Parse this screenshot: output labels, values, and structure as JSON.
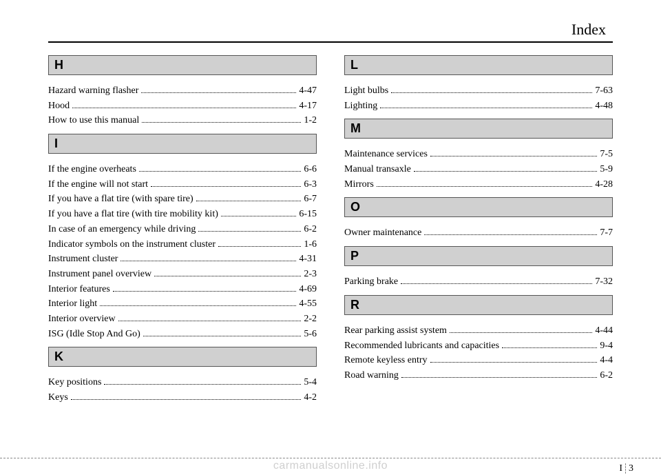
{
  "header": {
    "title": "Index"
  },
  "left": {
    "sections": [
      {
        "letter": "H",
        "entries": [
          {
            "label": "Hazard warning flasher",
            "page": "4-47"
          },
          {
            "label": "Hood",
            "page": "4-17"
          },
          {
            "label": "How to use this manual",
            "page": "1-2"
          }
        ]
      },
      {
        "letter": "I",
        "entries": [
          {
            "label": "If the engine overheats",
            "page": "6-6"
          },
          {
            "label": "If the engine will not start",
            "page": "6-3"
          },
          {
            "label": "If you have a flat tire (with spare tire)",
            "page": "6-7"
          },
          {
            "label": "If you have a flat tire (with tire mobility kit)",
            "page": "6-15"
          },
          {
            "label": "In case of an emergency while driving",
            "page": "6-2"
          },
          {
            "label": "Indicator symbols on the instrument cluster",
            "page": "1-6"
          },
          {
            "label": "Instrument cluster",
            "page": "4-31"
          },
          {
            "label": "Instrument panel overview",
            "page": "2-3"
          },
          {
            "label": "Interior features",
            "page": "4-69"
          },
          {
            "label": "Interior light",
            "page": "4-55"
          },
          {
            "label": "Interior overview",
            "page": "2-2"
          },
          {
            "label": "ISG (Idle Stop And Go)",
            "page": "5-6"
          }
        ]
      },
      {
        "letter": "K",
        "entries": [
          {
            "label": "Key positions",
            "page": "5-4"
          },
          {
            "label": "Keys",
            "page": "4-2"
          }
        ]
      }
    ]
  },
  "right": {
    "sections": [
      {
        "letter": "L",
        "entries": [
          {
            "label": "Light bulbs",
            "page": "7-63"
          },
          {
            "label": "Lighting",
            "page": "4-48"
          }
        ]
      },
      {
        "letter": "M",
        "entries": [
          {
            "label": "Maintenance services",
            "page": "7-5"
          },
          {
            "label": "Manual transaxle",
            "page": "5-9"
          },
          {
            "label": "Mirrors",
            "page": "4-28"
          }
        ]
      },
      {
        "letter": "O",
        "entries": [
          {
            "label": "Owner maintenance",
            "page": "7-7"
          }
        ]
      },
      {
        "letter": "P",
        "entries": [
          {
            "label": "Parking brake",
            "page": "7-32"
          }
        ]
      },
      {
        "letter": "R",
        "entries": [
          {
            "label": "Rear parking assist system",
            "page": "4-44"
          },
          {
            "label": "Recommended lubricants and capacities",
            "page": "9-4"
          },
          {
            "label": "Remote keyless entry",
            "page": "4-4"
          },
          {
            "label": "Road warning",
            "page": "6-2"
          }
        ]
      }
    ]
  },
  "footer": {
    "page_prefix": "I",
    "page_number": "3",
    "watermark": "carmanualsonline.info"
  }
}
